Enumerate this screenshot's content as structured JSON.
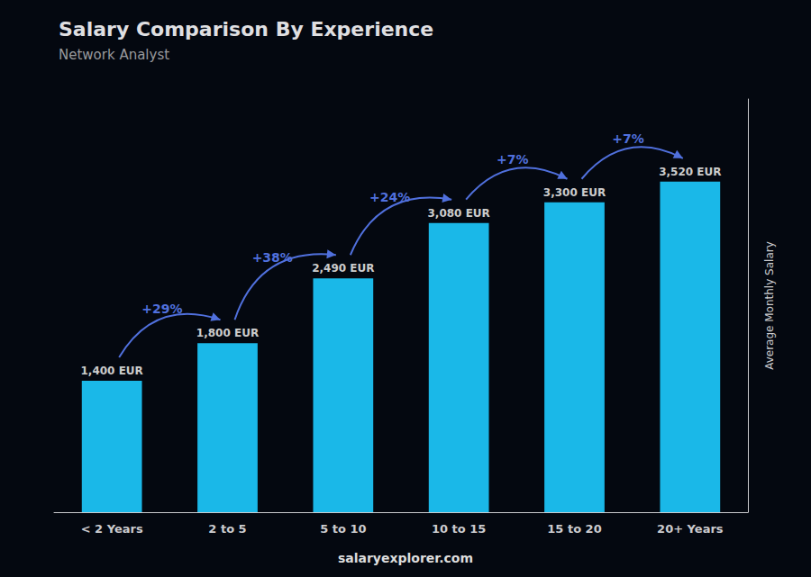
{
  "chart_data": {
    "type": "bar",
    "title": "Salary Comparison By Experience",
    "subtitle": "Network Analyst",
    "ylabel": "Average Monthly Salary",
    "categories": [
      "< 2 Years",
      "2 to 5",
      "5 to 10",
      "10 to 15",
      "15 to 20",
      "20+ Years"
    ],
    "values": [
      1400,
      1800,
      2490,
      3080,
      3300,
      3520
    ],
    "value_labels": [
      "1,400 EUR",
      "1,800 EUR",
      "2,490 EUR",
      "3,080 EUR",
      "3,300 EUR",
      "3,520 EUR"
    ],
    "data_labels": true,
    "color": "#1ab8e8",
    "ylim": [
      0,
      4400
    ],
    "tick_labels": "x",
    "grid": false,
    "annotations": [
      {
        "text": "+29%",
        "from": "< 2 Years",
        "to": "2 to 5"
      },
      {
        "text": "+38%",
        "from": "2 to 5",
        "to": "5 to 10"
      },
      {
        "text": "+24%",
        "from": "5 to 10",
        "to": "10 to 15"
      },
      {
        "text": "+7%",
        "from": "10 to 15",
        "to": "15 to 20"
      },
      {
        "text": "+7%",
        "from": "15 to 20",
        "to": "20+ Years"
      }
    ],
    "watermark": "salaryexplorer.com"
  }
}
